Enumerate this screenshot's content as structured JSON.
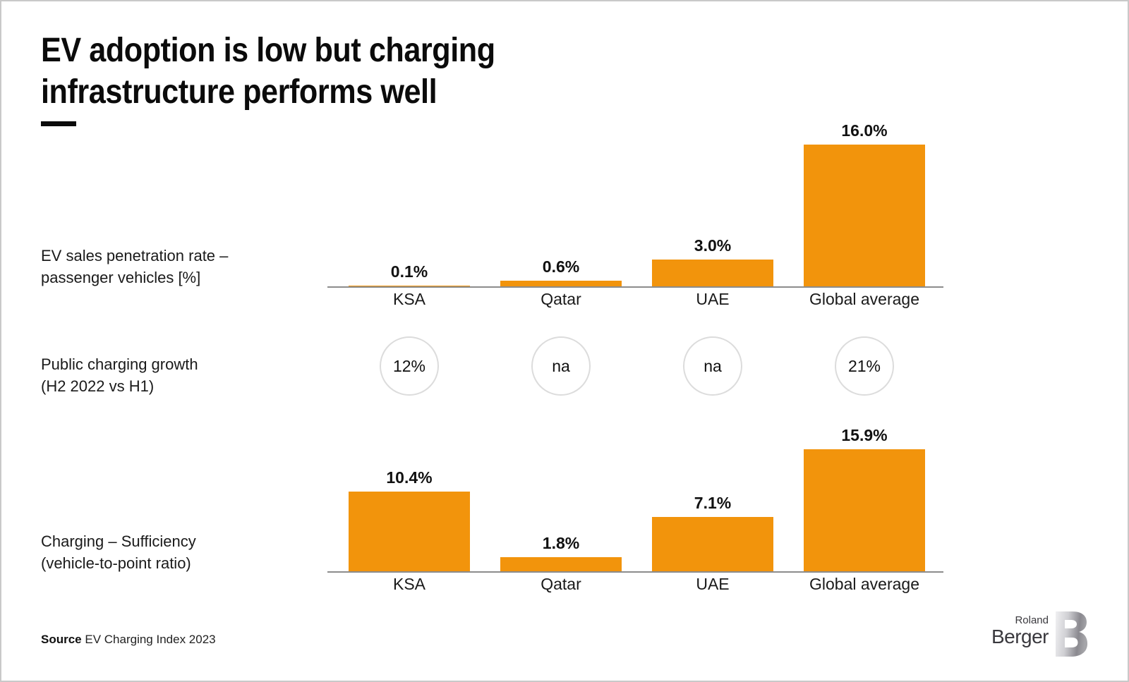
{
  "title": {
    "line1": "EV adoption is low but charging",
    "line2": "infrastructure performs well"
  },
  "rows": [
    {
      "label_line1": "EV sales penetration rate –",
      "label_line2": "passenger vehicles [%]"
    },
    {
      "label_line1": "Public charging growth",
      "label_line2": "(H2 2022 vs H1)"
    },
    {
      "label_line1": "Charging – Sufficiency",
      "label_line2": "(vehicle-to-point ratio)"
    }
  ],
  "source": {
    "label": "Source",
    "text": "EV Charging Index 2023"
  },
  "logo": {
    "line1": "Roland",
    "line2": "Berger",
    "mark": "rb-monogram"
  },
  "colors": {
    "bar": "#F2940C",
    "baseline": "#8c8c8c",
    "circle_border": "#dcdcdc",
    "text": "#141414",
    "title": "#0b0b0b"
  },
  "chart_data": [
    {
      "type": "bar",
      "title": "EV sales penetration rate – passenger vehicles [%]",
      "categories": [
        "KSA",
        "Qatar",
        "UAE",
        "Global average"
      ],
      "values": [
        0.1,
        0.6,
        3.0,
        16.0
      ],
      "value_labels": [
        "0.1%",
        "0.6%",
        "3.0%",
        "16.0%"
      ],
      "ylim": [
        0,
        16.5
      ],
      "grid": false,
      "legend": "none",
      "bar_color": "#F2940C"
    },
    {
      "type": "table",
      "subtype": "kpi_circles",
      "title": "Public charging growth (H2 2022 vs H1)",
      "categories": [
        "KSA",
        "Qatar",
        "UAE",
        "Global average"
      ],
      "values": [
        "12%",
        "na",
        "na",
        "21%"
      ]
    },
    {
      "type": "bar",
      "title": "Charging – Sufficiency (vehicle-to-point ratio)",
      "categories": [
        "KSA",
        "Qatar",
        "UAE",
        "Global average"
      ],
      "values": [
        10.4,
        1.8,
        7.1,
        15.9
      ],
      "value_labels": [
        "10.4%",
        "1.8%",
        "7.1%",
        "15.9%"
      ],
      "ylim": [
        0,
        16.5
      ],
      "grid": false,
      "legend": "none",
      "bar_color": "#F2940C"
    }
  ]
}
